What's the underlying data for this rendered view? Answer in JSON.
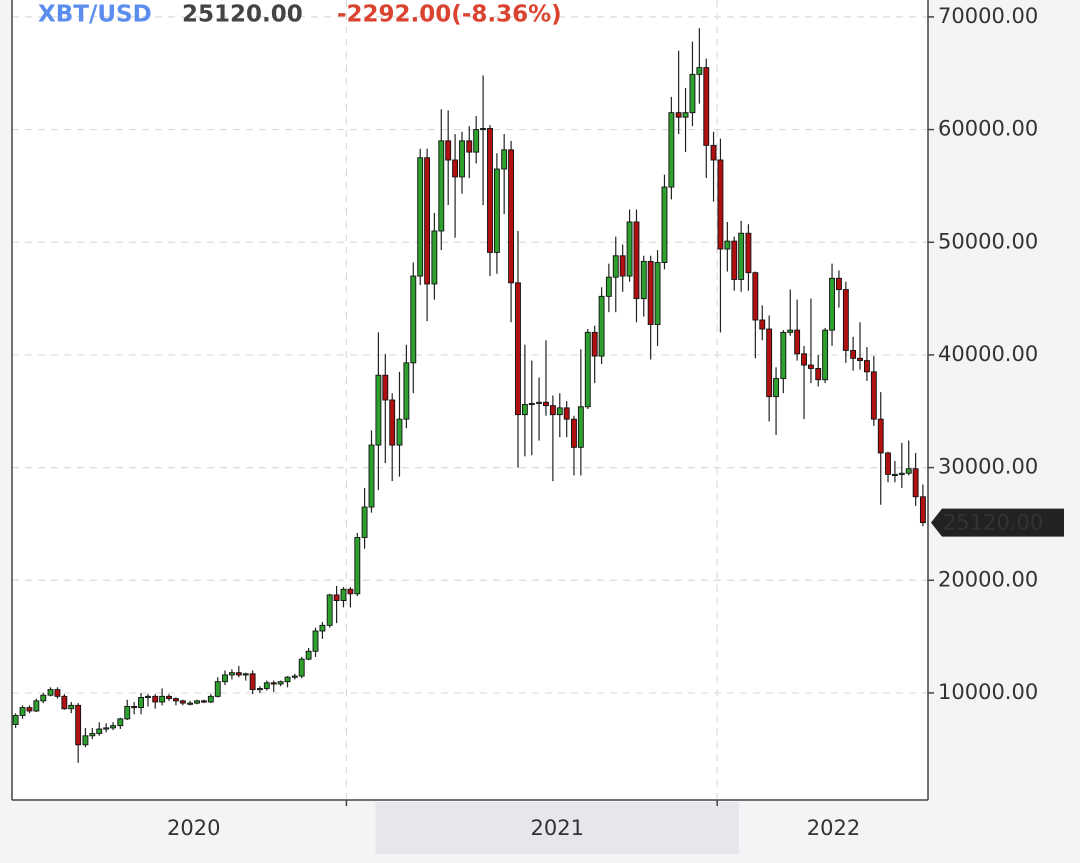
{
  "chart_data": {
    "type": "candlestick",
    "title": "XBT/USD",
    "last_price": {
      "value": 25120,
      "label": "25120.00"
    },
    "change_text": "-2292.00(-8.36%)",
    "up_color": "#2ea02e",
    "down_color": "#b01010",
    "grid": true,
    "xlim": [
      2020,
      2022.52
    ],
    "xticks": [
      {
        "value": 2020,
        "label": "2020"
      },
      {
        "value": 2021,
        "label": "2021"
      },
      {
        "value": 2022,
        "label": "2022"
      }
    ],
    "x_gridlines": [
      2020.92,
      2021.94
    ],
    "ylim": [
      500,
      71500
    ],
    "yticks": [
      {
        "value": 10000,
        "label": "10000.00"
      },
      {
        "value": 20000,
        "label": "20000.00"
      },
      {
        "value": 30000,
        "label": "30000.00"
      },
      {
        "value": 40000,
        "label": "40000.00"
      },
      {
        "value": 50000,
        "label": "50000.00"
      },
      {
        "value": 60000,
        "label": "60000.00"
      },
      {
        "value": 70000,
        "label": "70000.00"
      }
    ],
    "x": [
      2020.01,
      2020.029,
      2020.048,
      2020.067,
      2020.086,
      2020.106,
      2020.125,
      2020.144,
      2020.163,
      2020.182,
      2020.202,
      2020.221,
      2020.24,
      2020.259,
      2020.278,
      2020.298,
      2020.317,
      2020.336,
      2020.355,
      2020.374,
      2020.394,
      2020.413,
      2020.432,
      2020.451,
      2020.47,
      2020.49,
      2020.509,
      2020.528,
      2020.547,
      2020.566,
      2020.586,
      2020.605,
      2020.624,
      2020.643,
      2020.662,
      2020.682,
      2020.701,
      2020.72,
      2020.739,
      2020.758,
      2020.778,
      2020.797,
      2020.816,
      2020.835,
      2020.854,
      2020.874,
      2020.893,
      2020.912,
      2020.931,
      2020.95,
      2020.97,
      2020.989,
      2021.008,
      2021.027,
      2021.046,
      2021.066,
      2021.085,
      2021.104,
      2021.123,
      2021.142,
      2021.162,
      2021.181,
      2021.2,
      2021.219,
      2021.238,
      2021.258,
      2021.277,
      2021.296,
      2021.315,
      2021.334,
      2021.354,
      2021.373,
      2021.392,
      2021.411,
      2021.43,
      2021.45,
      2021.469,
      2021.488,
      2021.507,
      2021.526,
      2021.546,
      2021.565,
      2021.584,
      2021.603,
      2021.622,
      2021.642,
      2021.661,
      2021.68,
      2021.699,
      2021.718,
      2021.738,
      2021.757,
      2021.776,
      2021.795,
      2021.814,
      2021.834,
      2021.853,
      2021.872,
      2021.891,
      2021.91,
      2021.93,
      2021.949,
      2021.968,
      2021.987,
      2022.006,
      2022.026,
      2022.045,
      2022.064,
      2022.083,
      2022.102,
      2022.122,
      2022.141,
      2022.16,
      2022.179,
      2022.198,
      2022.218,
      2022.237,
      2022.256,
      2022.275,
      2022.294,
      2022.314,
      2022.333,
      2022.352,
      2022.371,
      2022.39,
      2022.41,
      2022.429,
      2022.448,
      2022.467,
      2022.486,
      2022.506
    ],
    "open": [
      7200,
      8000,
      8700,
      8400,
      9300,
      9800,
      10300,
      9700,
      8600,
      8900,
      5400,
      6200,
      6400,
      6800,
      6900,
      7100,
      7700,
      8800,
      8700,
      9600,
      9700,
      9200,
      9700,
      9500,
      9300,
      9100,
      9100,
      9300,
      9200,
      9700,
      11000,
      11600,
      11800,
      11600,
      11700,
      10300,
      10400,
      10900,
      10800,
      11000,
      11400,
      11500,
      13000,
      13700,
      15500,
      16000,
      18700,
      18200,
      19200,
      18800,
      23800,
      26500,
      32000,
      38200,
      36000,
      32000,
      34300,
      39300,
      47000,
      57500,
      46300,
      51000,
      59000,
      57300,
      55800,
      59000,
      58000,
      60000,
      60100,
      49100,
      56500,
      58200,
      46400,
      34700,
      35600,
      35700,
      35800,
      35500,
      34700,
      35300,
      34300,
      31800,
      35400,
      42000,
      39900,
      45200,
      46900,
      48800,
      47000,
      51800,
      45000,
      48300,
      42700,
      48200,
      54900,
      61500,
      61100,
      61500,
      64900,
      65500,
      58600,
      57300,
      49400,
      50100,
      46700,
      50800,
      47300,
      43100,
      42300,
      36300,
      37900,
      42000,
      42200,
      40100,
      39100,
      38800,
      37800,
      42200,
      46800,
      45800,
      40400,
      39700,
      39500,
      38500,
      34300,
      31300,
      29400,
      29400,
      29500,
      29900,
      27412
    ],
    "high": [
      8200,
      8900,
      8900,
      9500,
      10000,
      10500,
      10500,
      9900,
      9200,
      9100,
      6900,
      6900,
      7400,
      7300,
      7400,
      7800,
      9400,
      9200,
      10000,
      9900,
      9900,
      10400,
      9900,
      9600,
      9400,
      9300,
      9400,
      9400,
      9900,
      11400,
      12000,
      12100,
      12400,
      11800,
      12000,
      10600,
      11100,
      11100,
      11100,
      11500,
      11700,
      13200,
      14000,
      15800,
      16300,
      18800,
      19500,
      19400,
      19400,
      24200,
      28200,
      33300,
      42000,
      40100,
      36600,
      38500,
      40900,
      48200,
      58300,
      58300,
      52600,
      61800,
      61700,
      59600,
      59800,
      60300,
      61200,
      64800,
      60400,
      57900,
      59600,
      59000,
      51000,
      40900,
      39500,
      38000,
      41300,
      36400,
      36600,
      35900,
      34600,
      40500,
      42300,
      42600,
      46000,
      48100,
      50500,
      49800,
      52900,
      52900,
      48800,
      48800,
      49300,
      56000,
      62900,
      67000,
      63700,
      67800,
      69000,
      66300,
      59800,
      59200,
      51800,
      50500,
      51900,
      51600,
      47400,
      44400,
      43500,
      38900,
      42200,
      45800,
      44900,
      40800,
      45000,
      40000,
      42400,
      48100,
      47500,
      46500,
      41600,
      42900,
      40700,
      39900,
      36700,
      31400,
      30600,
      32200,
      32400,
      31300,
      28500
    ],
    "low": [
      6900,
      7700,
      8200,
      8300,
      9100,
      9700,
      9500,
      8500,
      8200,
      3800,
      5200,
      5900,
      6200,
      6500,
      6700,
      6800,
      7600,
      8100,
      8100,
      8800,
      8600,
      8900,
      9300,
      8900,
      8900,
      8900,
      9000,
      9100,
      9100,
      9600,
      10700,
      11200,
      11400,
      11100,
      9900,
      10000,
      10200,
      10100,
      10600,
      10500,
      11200,
      11300,
      12900,
      13200,
      14800,
      15800,
      16200,
      17600,
      17600,
      18600,
      22800,
      26000,
      28000,
      30400,
      28800,
      29200,
      33500,
      36600,
      46200,
      43000,
      44900,
      49300,
      53300,
      50400,
      54300,
      55700,
      57000,
      53300,
      47000,
      47200,
      52500,
      42900,
      30000,
      31000,
      31100,
      32400,
      34600,
      28800,
      32700,
      32700,
      29300,
      29300,
      35200,
      37500,
      39200,
      43800,
      43800,
      45600,
      46500,
      42900,
      43400,
      39600,
      40800,
      47600,
      53800,
      59600,
      58000,
      60300,
      62300,
      55700,
      53600,
      42000,
      47400,
      45700,
      45600,
      45700,
      39700,
      41300,
      34100,
      32900,
      36600,
      41700,
      39500,
      34300,
      37500,
      37200,
      37500,
      40800,
      44200,
      39300,
      38600,
      38700,
      37700,
      33700,
      26700,
      28700,
      28700,
      28200,
      29300,
      26600,
      24800
    ],
    "close": [
      8000,
      8700,
      8400,
      9300,
      9800,
      10300,
      9700,
      8600,
      8900,
      5400,
      6200,
      6400,
      6800,
      6900,
      7100,
      7700,
      8800,
      8700,
      9600,
      9700,
      9200,
      9700,
      9500,
      9300,
      9100,
      9100,
      9300,
      9200,
      9700,
      11000,
      11600,
      11800,
      11600,
      11700,
      10300,
      10400,
      10900,
      10800,
      11000,
      11400,
      11500,
      13000,
      13700,
      15500,
      16000,
      18700,
      18200,
      19200,
      18800,
      23800,
      26500,
      32000,
      38200,
      36000,
      32000,
      34300,
      39300,
      47000,
      57500,
      46300,
      51000,
      59000,
      57300,
      55800,
      59000,
      58000,
      60000,
      60100,
      49100,
      56500,
      58200,
      46400,
      34700,
      35600,
      35700,
      35800,
      35500,
      34700,
      35300,
      34300,
      31800,
      35400,
      42000,
      39900,
      45200,
      46900,
      48800,
      47000,
      51800,
      45000,
      48300,
      42700,
      48200,
      54900,
      61500,
      61100,
      61500,
      64900,
      65500,
      58600,
      57300,
      49400,
      50100,
      46700,
      50800,
      47300,
      43100,
      42300,
      36300,
      37900,
      42000,
      42200,
      40100,
      39100,
      38800,
      37800,
      42200,
      46800,
      45800,
      40400,
      39700,
      39500,
      38500,
      34300,
      31300,
      29400,
      29400,
      29500,
      29900,
      27412,
      25120
    ]
  }
}
